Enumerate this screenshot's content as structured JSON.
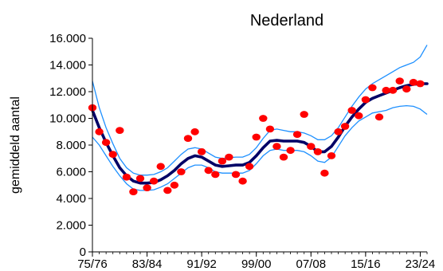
{
  "chart_data": {
    "type": "scatter",
    "title": "Nederland",
    "xlabel": "",
    "ylabel": "gemiddeld aantal",
    "x_tick_labels": [
      "75/76",
      "83/84",
      "91/92",
      "99/00",
      "07/08",
      "15/16",
      "23/24"
    ],
    "x_tick_seasons": [
      1975,
      1983,
      1991,
      1999,
      2007,
      2015,
      2023
    ],
    "xlim": [
      1975,
      2024
    ],
    "ylim": [
      0,
      16000
    ],
    "y_tick_values": [
      0,
      2000,
      4000,
      6000,
      8000,
      10000,
      12000,
      14000,
      16000
    ],
    "y_tick_labels": [
      "0",
      "2.000",
      "4.000",
      "6.000",
      "8.000",
      "10.000",
      "12.000",
      "14.000",
      "16.000"
    ],
    "grid": false,
    "colors": {
      "points": "#ff0000",
      "trend": "#000066",
      "band": "#1e90ff"
    },
    "series": [
      {
        "type": "scatter",
        "points": [
          [
            1975,
            10800
          ],
          [
            1976,
            9000
          ],
          [
            1977,
            8200
          ],
          [
            1978,
            7300
          ],
          [
            1979,
            9100
          ],
          [
            1980,
            5600
          ],
          [
            1981,
            4500
          ],
          [
            1982,
            5500
          ],
          [
            1983,
            4800
          ],
          [
            1984,
            5300
          ],
          [
            1985,
            6400
          ],
          [
            1986,
            4600
          ],
          [
            1987,
            5000
          ],
          [
            1988,
            6000
          ],
          [
            1989,
            8500
          ],
          [
            1990,
            9000
          ],
          [
            1991,
            7500
          ],
          [
            1992,
            6100
          ],
          [
            1993,
            5800
          ],
          [
            1994,
            6800
          ],
          [
            1995,
            7100
          ],
          [
            1996,
            5800
          ],
          [
            1997,
            5300
          ],
          [
            1998,
            6400
          ],
          [
            1999,
            8600
          ],
          [
            2000,
            10000
          ],
          [
            2001,
            9200
          ],
          [
            2002,
            7900
          ],
          [
            2003,
            7100
          ],
          [
            2004,
            7600
          ],
          [
            2005,
            8800
          ],
          [
            2006,
            10300
          ],
          [
            2007,
            7900
          ],
          [
            2008,
            7500
          ],
          [
            2009,
            5900
          ],
          [
            2010,
            7200
          ],
          [
            2011,
            9000
          ],
          [
            2012,
            9400
          ],
          [
            2013,
            10600
          ],
          [
            2014,
            10200
          ],
          [
            2015,
            11400
          ],
          [
            2016,
            12300
          ],
          [
            2017,
            10100
          ],
          [
            2018,
            12100
          ],
          [
            2019,
            12100
          ],
          [
            2020,
            12800
          ],
          [
            2021,
            12200
          ],
          [
            2022,
            12700
          ],
          [
            2023,
            12600
          ]
        ]
      },
      {
        "type": "line",
        "points": [
          [
            1975,
            10600
          ],
          [
            1976,
            9300
          ],
          [
            1977,
            8200
          ],
          [
            1978,
            7200
          ],
          [
            1979,
            6300
          ],
          [
            1980,
            5700
          ],
          [
            1981,
            5300
          ],
          [
            1982,
            5150
          ],
          [
            1983,
            5150
          ],
          [
            1984,
            5200
          ],
          [
            1985,
            5400
          ],
          [
            1986,
            5700
          ],
          [
            1987,
            6100
          ],
          [
            1988,
            6600
          ],
          [
            1989,
            7000
          ],
          [
            1990,
            7200
          ],
          [
            1991,
            7100
          ],
          [
            1992,
            6800
          ],
          [
            1993,
            6500
          ],
          [
            1994,
            6400
          ],
          [
            1995,
            6450
          ],
          [
            1996,
            6500
          ],
          [
            1997,
            6500
          ],
          [
            1998,
            6700
          ],
          [
            1999,
            7200
          ],
          [
            2000,
            7800
          ],
          [
            2001,
            8300
          ],
          [
            2002,
            8350
          ],
          [
            2003,
            8300
          ],
          [
            2004,
            8300
          ],
          [
            2005,
            8300
          ],
          [
            2006,
            8200
          ],
          [
            2007,
            7900
          ],
          [
            2008,
            7500
          ],
          [
            2009,
            7500
          ],
          [
            2010,
            7900
          ],
          [
            2011,
            8600
          ],
          [
            2012,
            9400
          ],
          [
            2013,
            10100
          ],
          [
            2014,
            10700
          ],
          [
            2015,
            11200
          ],
          [
            2016,
            11500
          ],
          [
            2017,
            11700
          ],
          [
            2018,
            11900
          ],
          [
            2019,
            12100
          ],
          [
            2020,
            12300
          ],
          [
            2021,
            12450
          ],
          [
            2022,
            12550
          ],
          [
            2023,
            12600
          ],
          [
            2024,
            12600
          ]
        ]
      },
      {
        "type": "line",
        "points": [
          [
            1975,
            12800
          ],
          [
            1976,
            10800
          ],
          [
            1977,
            9300
          ],
          [
            1978,
            8100
          ],
          [
            1979,
            7000
          ],
          [
            1980,
            6300
          ],
          [
            1981,
            5900
          ],
          [
            1982,
            5750
          ],
          [
            1983,
            5750
          ],
          [
            1984,
            5800
          ],
          [
            1985,
            6000
          ],
          [
            1986,
            6300
          ],
          [
            1987,
            6800
          ],
          [
            1988,
            7300
          ],
          [
            1989,
            7700
          ],
          [
            1990,
            7800
          ],
          [
            1991,
            7700
          ],
          [
            1992,
            7400
          ],
          [
            1993,
            7100
          ],
          [
            1994,
            7000
          ],
          [
            1995,
            7050
          ],
          [
            1996,
            7100
          ],
          [
            1997,
            7100
          ],
          [
            1998,
            7300
          ],
          [
            1999,
            7800
          ],
          [
            2000,
            8500
          ],
          [
            2001,
            9100
          ],
          [
            2002,
            9200
          ],
          [
            2003,
            9100
          ],
          [
            2004,
            9000
          ],
          [
            2005,
            9000
          ],
          [
            2006,
            8900
          ],
          [
            2007,
            8700
          ],
          [
            2008,
            8400
          ],
          [
            2009,
            8400
          ],
          [
            2010,
            8700
          ],
          [
            2011,
            9300
          ],
          [
            2012,
            10100
          ],
          [
            2013,
            10900
          ],
          [
            2014,
            11600
          ],
          [
            2015,
            12200
          ],
          [
            2016,
            12600
          ],
          [
            2017,
            12900
          ],
          [
            2018,
            13200
          ],
          [
            2019,
            13500
          ],
          [
            2020,
            13800
          ],
          [
            2021,
            14000
          ],
          [
            2022,
            14200
          ],
          [
            2023,
            14600
          ],
          [
            2024,
            15500
          ]
        ]
      },
      {
        "type": "line",
        "points": [
          [
            1975,
            8600
          ],
          [
            1976,
            8000
          ],
          [
            1977,
            7200
          ],
          [
            1978,
            6400
          ],
          [
            1979,
            5700
          ],
          [
            1980,
            5100
          ],
          [
            1981,
            4700
          ],
          [
            1982,
            4600
          ],
          [
            1983,
            4600
          ],
          [
            1984,
            4650
          ],
          [
            1985,
            4850
          ],
          [
            1986,
            5100
          ],
          [
            1987,
            5500
          ],
          [
            1988,
            5900
          ],
          [
            1989,
            6300
          ],
          [
            1990,
            6500
          ],
          [
            1991,
            6500
          ],
          [
            1992,
            6300
          ],
          [
            1993,
            6000
          ],
          [
            1994,
            5900
          ],
          [
            1995,
            5900
          ],
          [
            1996,
            5900
          ],
          [
            1997,
            5900
          ],
          [
            1998,
            6100
          ],
          [
            1999,
            6600
          ],
          [
            2000,
            7200
          ],
          [
            2001,
            7600
          ],
          [
            2002,
            7700
          ],
          [
            2003,
            7600
          ],
          [
            2004,
            7600
          ],
          [
            2005,
            7600
          ],
          [
            2006,
            7500
          ],
          [
            2007,
            7200
          ],
          [
            2008,
            6800
          ],
          [
            2009,
            6700
          ],
          [
            2010,
            7100
          ],
          [
            2011,
            7900
          ],
          [
            2012,
            8700
          ],
          [
            2013,
            9300
          ],
          [
            2014,
            9800
          ],
          [
            2015,
            10100
          ],
          [
            2016,
            10400
          ],
          [
            2017,
            10500
          ],
          [
            2018,
            10600
          ],
          [
            2019,
            10800
          ],
          [
            2020,
            10900
          ],
          [
            2021,
            10950
          ],
          [
            2022,
            10900
          ],
          [
            2023,
            10700
          ],
          [
            2024,
            10300
          ]
        ]
      }
    ]
  }
}
